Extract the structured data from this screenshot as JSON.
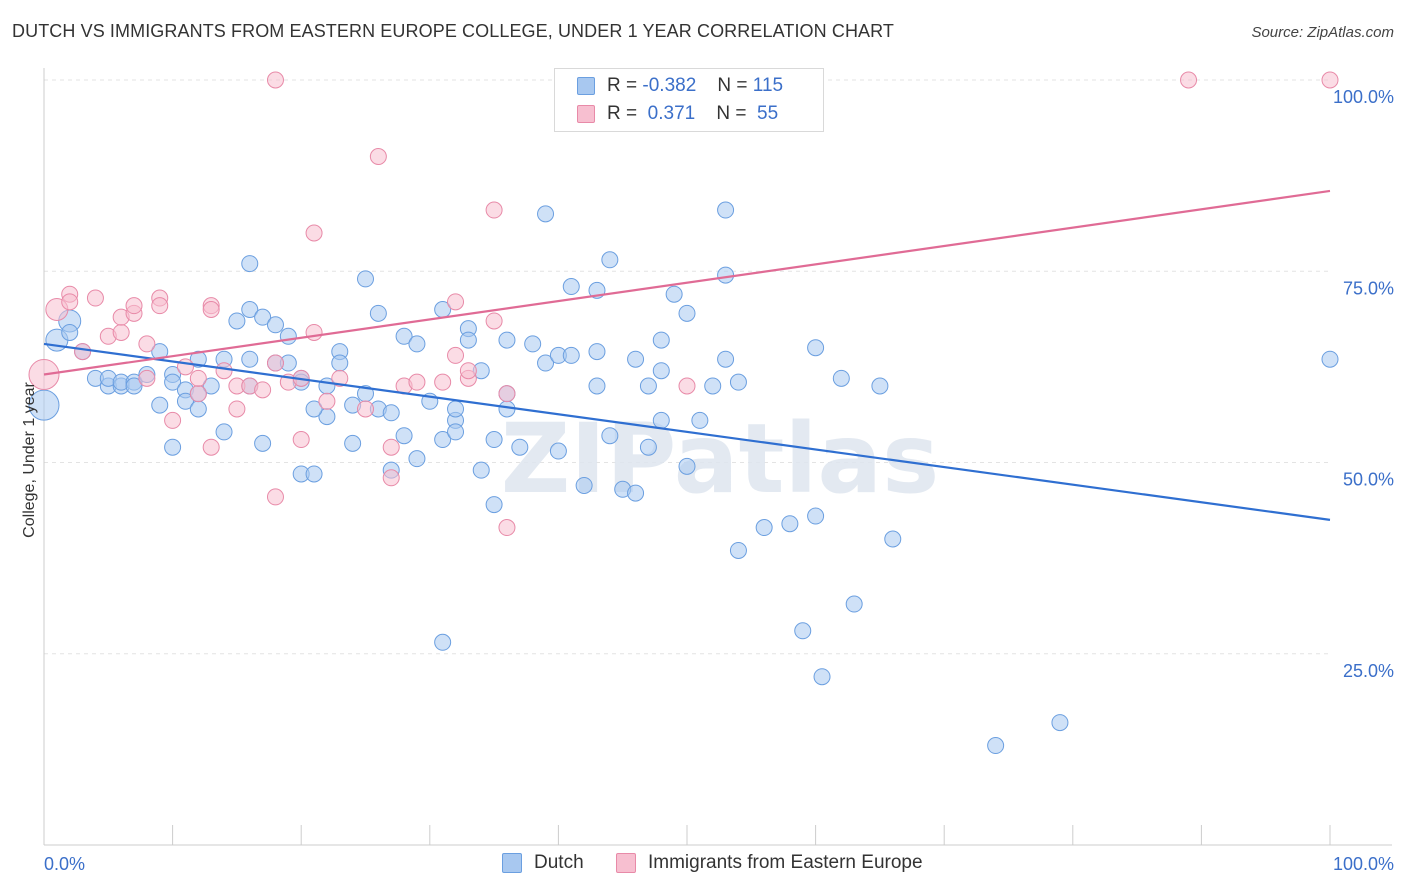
{
  "title": "DUTCH VS IMMIGRANTS FROM EASTERN EUROPE COLLEGE, UNDER 1 YEAR CORRELATION CHART",
  "source": "Source: ZipAtlas.com",
  "watermark": "ZIPatlas",
  "legend": {
    "rows": [
      {
        "r_label": "R =",
        "r_value": "-0.382",
        "n_label": "N =",
        "n_value": "115",
        "color": "#a8c8f0",
        "border": "#6b9fe0"
      },
      {
        "r_label": "R =",
        "r_value": " 0.371",
        "n_label": "N =",
        "n_value": " 55",
        "color": "#f7bfd0",
        "border": "#e88aa8"
      }
    ]
  },
  "bottom_legend": [
    "Dutch",
    "Immigrants from Eastern Europe"
  ],
  "chart_data": {
    "type": "scatter",
    "xlabel": "",
    "ylabel": "College, Under 1 year",
    "xlim": [
      0,
      100
    ],
    "ylim": [
      0,
      100
    ],
    "x_tick_labels": [
      "0.0%",
      "100.0%"
    ],
    "y_tick_labels": [
      "25.0%",
      "50.0%",
      "75.0%",
      "100.0%"
    ],
    "y_ticks": [
      25,
      50,
      75,
      100
    ],
    "grid": true,
    "series": [
      {
        "name": "Dutch",
        "color": "#a8c8f0",
        "stroke": "#6b9fe0",
        "line_color": "#2f6fd1",
        "trend": [
          [
            0,
            65.5
          ],
          [
            100,
            42.5
          ]
        ],
        "points": [
          [
            0,
            57.5,
            14
          ],
          [
            1,
            66,
            10
          ],
          [
            2,
            68.5,
            10
          ],
          [
            2,
            67,
            7
          ],
          [
            3,
            64.5,
            7
          ],
          [
            4,
            61,
            7
          ],
          [
            5,
            60,
            7
          ],
          [
            5,
            61,
            7
          ],
          [
            6,
            60,
            7
          ],
          [
            6,
            60.5,
            7
          ],
          [
            7,
            60.5,
            7
          ],
          [
            7,
            60,
            7
          ],
          [
            8,
            61.5,
            7
          ],
          [
            9,
            57.5,
            7
          ],
          [
            9,
            64.5,
            7
          ],
          [
            10,
            61.5,
            7
          ],
          [
            10,
            60.5,
            7
          ],
          [
            11,
            59.5,
            7
          ],
          [
            11,
            58,
            7
          ],
          [
            12,
            57,
            7
          ],
          [
            12,
            59,
            7
          ],
          [
            12,
            63.5,
            7
          ],
          [
            13,
            60,
            7
          ],
          [
            14,
            63.5,
            7
          ],
          [
            14,
            54,
            7
          ],
          [
            15,
            68.5,
            7
          ],
          [
            16,
            70,
            7
          ],
          [
            16,
            63.5,
            7
          ],
          [
            16,
            76,
            7
          ],
          [
            17,
            52.5,
            7
          ],
          [
            17,
            69,
            7
          ],
          [
            18,
            68,
            7
          ],
          [
            18,
            63,
            7
          ],
          [
            19,
            63,
            7
          ],
          [
            19,
            66.5,
            7
          ],
          [
            20,
            48.5,
            7
          ],
          [
            20,
            61,
            7
          ],
          [
            20,
            60.5,
            7
          ],
          [
            21,
            48.5,
            7
          ],
          [
            22,
            56,
            7
          ],
          [
            23,
            64.5,
            7
          ],
          [
            23,
            63,
            7
          ],
          [
            24,
            52.5,
            7
          ],
          [
            24,
            57.5,
            7
          ],
          [
            25,
            74,
            7
          ],
          [
            25,
            59,
            7
          ],
          [
            26,
            69.5,
            7
          ],
          [
            26,
            57,
            7
          ],
          [
            27,
            56.5,
            7
          ],
          [
            28,
            66.5,
            7
          ],
          [
            28,
            53.5,
            7
          ],
          [
            29,
            50.5,
            7
          ],
          [
            29,
            65.5,
            7
          ],
          [
            30,
            58,
            7
          ],
          [
            31,
            70,
            7
          ],
          [
            31,
            53,
            7
          ],
          [
            32,
            55.5,
            7
          ],
          [
            32,
            54,
            7
          ],
          [
            32,
            57,
            7
          ],
          [
            33,
            67.5,
            7
          ],
          [
            33,
            66,
            7
          ],
          [
            34,
            62,
            7
          ],
          [
            35,
            44.5,
            7
          ],
          [
            35,
            53,
            7
          ],
          [
            36,
            57,
            7
          ],
          [
            36,
            66,
            7
          ],
          [
            37,
            52,
            7
          ],
          [
            38,
            65.5,
            7
          ],
          [
            39,
            82.5,
            7
          ],
          [
            39,
            63,
            7
          ],
          [
            40,
            64,
            7
          ],
          [
            40,
            51.5,
            7
          ],
          [
            41,
            64,
            7
          ],
          [
            41,
            73,
            7
          ],
          [
            42,
            47,
            7
          ],
          [
            43,
            72.5,
            7
          ],
          [
            43,
            64.5,
            7
          ],
          [
            44,
            76.5,
            7
          ],
          [
            44,
            53.5,
            7
          ],
          [
            45,
            46.5,
            7
          ],
          [
            46,
            46,
            7
          ],
          [
            46,
            63.5,
            7
          ],
          [
            47,
            52,
            7
          ],
          [
            48,
            62,
            7
          ],
          [
            48,
            55.5,
            7
          ],
          [
            49,
            72,
            7
          ],
          [
            50,
            69.5,
            7
          ],
          [
            50,
            49.5,
            7
          ],
          [
            51,
            55.5,
            7
          ],
          [
            52,
            60,
            7
          ],
          [
            53,
            83,
            7
          ],
          [
            53,
            74.5,
            7
          ],
          [
            53,
            63.5,
            7
          ],
          [
            54,
            38.5,
            7
          ],
          [
            54,
            60.5,
            7
          ],
          [
            56,
            41.5,
            7
          ],
          [
            58,
            42,
            7
          ],
          [
            59,
            28,
            7
          ],
          [
            60,
            65,
            7
          ],
          [
            60,
            43,
            7
          ],
          [
            62,
            61,
            7
          ],
          [
            63,
            31.5,
            7
          ],
          [
            66,
            40,
            7
          ],
          [
            60.5,
            22,
            7
          ],
          [
            65,
            60,
            7
          ],
          [
            74,
            13,
            7
          ],
          [
            79,
            16,
            7
          ],
          [
            100,
            63.5,
            7
          ],
          [
            31,
            26.5,
            7
          ],
          [
            22,
            60,
            7
          ],
          [
            10,
            52,
            7
          ],
          [
            43,
            60,
            7
          ],
          [
            27,
            49,
            7
          ],
          [
            36,
            59,
            7
          ],
          [
            21,
            57,
            7
          ],
          [
            48,
            66,
            7
          ],
          [
            16,
            60,
            7
          ],
          [
            34,
            49,
            7
          ],
          [
            47,
            60,
            7
          ]
        ]
      },
      {
        "name": "Immigrants from Eastern Europe",
        "color": "#f7bfd0",
        "stroke": "#e88aa8",
        "line_color": "#e06b95",
        "trend": [
          [
            0,
            61.5
          ],
          [
            100,
            85.5
          ]
        ],
        "points": [
          [
            0,
            61.5,
            14
          ],
          [
            1,
            70,
            10
          ],
          [
            2,
            72,
            7
          ],
          [
            2,
            71,
            7
          ],
          [
            3,
            64.5,
            7
          ],
          [
            4,
            71.5,
            7
          ],
          [
            5,
            66.5,
            7
          ],
          [
            6,
            67,
            7
          ],
          [
            6,
            69,
            7
          ],
          [
            7,
            69.5,
            7
          ],
          [
            7,
            70.5,
            7
          ],
          [
            8,
            61,
            7
          ],
          [
            8,
            65.5,
            7
          ],
          [
            9,
            71.5,
            7
          ],
          [
            9,
            70.5,
            7
          ],
          [
            10,
            55.5,
            7
          ],
          [
            11,
            62.5,
            7
          ],
          [
            12,
            59,
            7
          ],
          [
            12,
            61,
            7
          ],
          [
            13,
            70.5,
            7
          ],
          [
            13,
            70,
            7
          ],
          [
            13,
            52,
            7
          ],
          [
            14,
            62,
            7
          ],
          [
            15,
            60,
            7
          ],
          [
            15,
            57,
            7
          ],
          [
            16,
            60,
            7
          ],
          [
            17,
            59.5,
            7
          ],
          [
            18,
            45.5,
            7
          ],
          [
            18,
            63,
            7
          ],
          [
            19,
            60.5,
            7
          ],
          [
            20,
            53,
            7
          ],
          [
            20,
            61,
            7
          ],
          [
            21,
            67,
            7
          ],
          [
            22,
            58,
            7
          ],
          [
            23,
            61,
            7
          ],
          [
            25,
            57,
            7
          ],
          [
            27,
            52,
            7
          ],
          [
            27,
            48,
            7
          ],
          [
            28,
            60,
            7
          ],
          [
            29,
            60.5,
            7
          ],
          [
            32,
            64,
            7
          ],
          [
            32,
            71,
            7
          ],
          [
            33,
            61,
            7
          ],
          [
            35,
            68.5,
            7
          ],
          [
            35,
            83,
            7
          ],
          [
            36,
            59,
            7
          ],
          [
            36,
            41.5,
            7
          ],
          [
            18,
            100,
            7
          ],
          [
            21,
            80,
            7
          ],
          [
            26,
            90,
            7
          ],
          [
            31,
            60.5,
            7
          ],
          [
            50,
            60,
            7
          ],
          [
            89,
            100,
            7
          ],
          [
            100,
            100,
            7
          ],
          [
            33,
            62,
            7
          ]
        ]
      }
    ]
  }
}
